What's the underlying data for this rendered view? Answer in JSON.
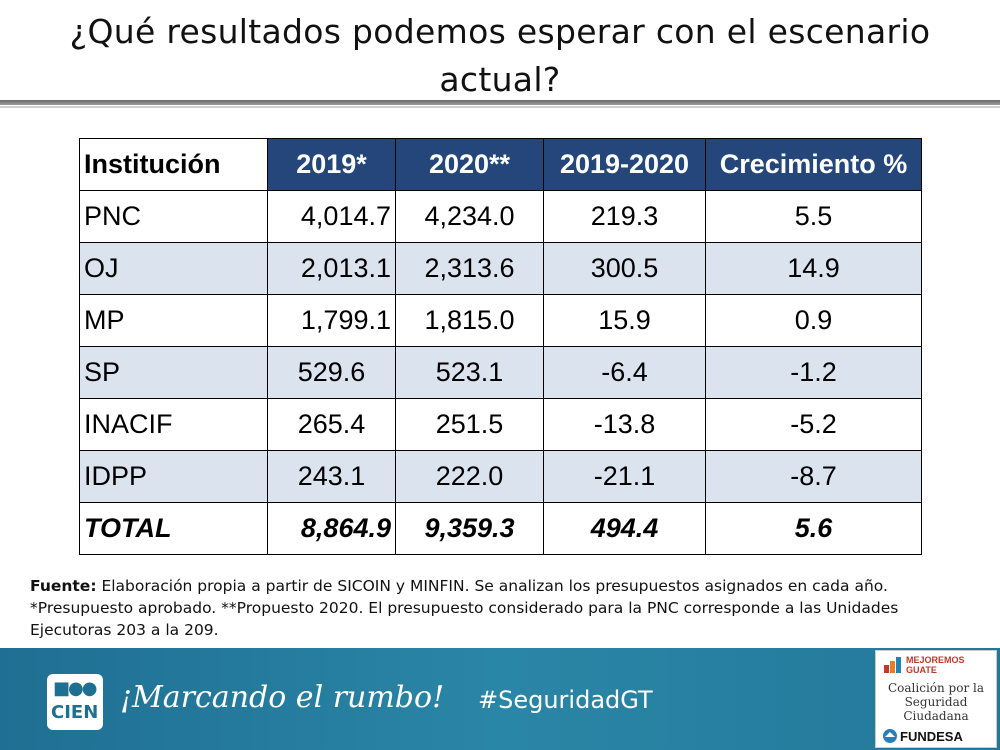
{
  "title": "¿Qué resultados podemos esperar con el escenario actual?",
  "table": {
    "headers": [
      "Institución",
      "2019*",
      "2020**",
      "2019-2020",
      "Crecimiento %"
    ],
    "rows": [
      [
        "PNC",
        "4,014.7",
        "4,234.0",
        "219.3",
        "5.5"
      ],
      [
        "OJ",
        "2,013.1",
        "2,313.6",
        "300.5",
        "14.9"
      ],
      [
        "MP",
        "1,799.1",
        "1,815.0",
        "15.9",
        "0.9"
      ],
      [
        "SP",
        "529.6",
        "523.1",
        "-6.4",
        "-1.2"
      ],
      [
        "INACIF",
        "265.4",
        "251.5",
        "-13.8",
        "-5.2"
      ],
      [
        "IDPP",
        "243.1",
        "222.0",
        "-21.1",
        "-8.7"
      ]
    ],
    "total": [
      "TOTAL",
      "8,864.9",
      "9,359.3",
      "494.4",
      "5.6"
    ]
  },
  "note": {
    "label": "Fuente:",
    "text": " Elaboración propia a partir de SICOIN y MINFIN. Se analizan los presupuestos asignados en cada año. *Presupuesto aprobado. **Propuesto 2020. El presupuesto considerado para la PNC corresponde a las Unidades Ejecutoras 203 a la 209."
  },
  "footer": {
    "logo_text": "CIEN",
    "slogan": "¡Marcando el rumbo!",
    "hashtag": "#SeguridadGT",
    "partner_top": "MEJOREMOS GUATE",
    "partner_name": "Coalición por la Seguridad Ciudadana",
    "partner_bottom": "FUNDESA"
  },
  "colors": {
    "header_bg": "#24467a",
    "alt_row_bg": "#dbe3ef",
    "footer_bg": "#2a86a6"
  }
}
